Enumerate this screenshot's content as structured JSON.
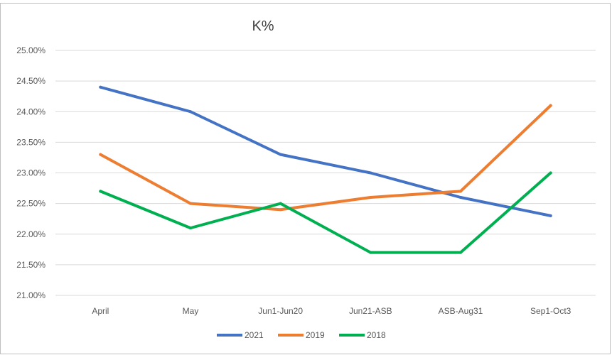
{
  "chart_data": {
    "type": "line",
    "title": "K%",
    "xlabel": "",
    "ylabel": "",
    "categories": [
      "April",
      "May",
      "Jun1-Jun20",
      "Jun21-ASB",
      "ASB-Aug31",
      "Sep1-Oct3"
    ],
    "ylim": [
      21.0,
      25.0
    ],
    "ytick_step": 0.5,
    "ytick_labels": [
      "21.00%",
      "21.50%",
      "22.00%",
      "22.50%",
      "23.00%",
      "23.50%",
      "24.00%",
      "24.50%",
      "25.00%"
    ],
    "grid": true,
    "legend_position": "bottom",
    "series": [
      {
        "name": "2021",
        "color": "#4472C4",
        "values": [
          24.4,
          24.0,
          23.3,
          23.0,
          22.6,
          22.3
        ]
      },
      {
        "name": "2019",
        "color": "#ED7D31",
        "values": [
          23.3,
          22.5,
          22.4,
          22.6,
          22.7,
          24.1
        ]
      },
      {
        "name": "2018",
        "color": "#00B050",
        "values": [
          22.7,
          22.1,
          22.5,
          21.7,
          21.7,
          23.0
        ]
      }
    ]
  }
}
